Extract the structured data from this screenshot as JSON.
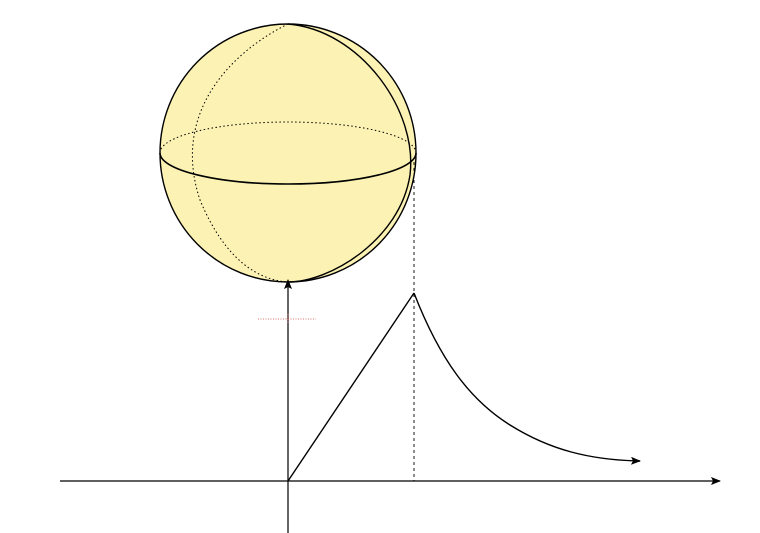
{
  "colors": {
    "background": "#ffffff",
    "sphere_fill": "#fbf2b4",
    "stroke": "#000000",
    "crosshair": "#d04040"
  },
  "diagram": {
    "type": "sphere-above-graph",
    "sphere": {
      "equator": "solid-front-dashed-back",
      "meridian": "solid-front-dotted-back"
    },
    "graph": {
      "x_axis": "arrow-right",
      "y_axis": "arrow-up",
      "curve": "linear-rise-then-decay",
      "projection_line": "dashed-vertical",
      "curve_end": "arrow"
    }
  }
}
